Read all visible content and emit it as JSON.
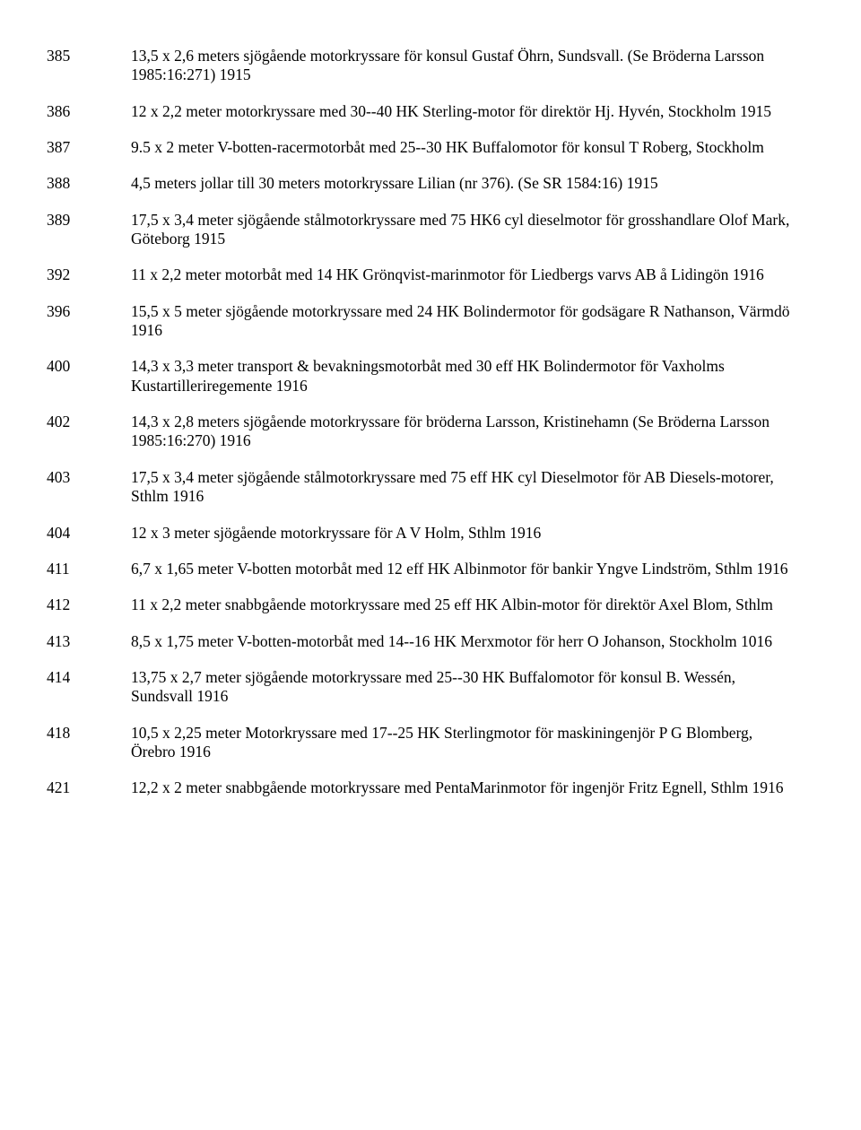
{
  "entries": [
    {
      "num": "385",
      "desc": "13,5 x 2,6 meters sjögående motorkryssare för konsul Gustaf Öhrn, Sundsvall. (Se Bröderna Larsson 1985:16:271) 1915"
    },
    {
      "num": "386",
      "desc": "12 x 2,2 meter motorkryssare med 30--40 HK Sterling-motor för direktör Hj. Hyvén, Stockholm 1915"
    },
    {
      "num": "387",
      "desc": "9.5 x 2 meter V-botten-racermotorbåt med 25--30 HK Buffalomotor för konsul T Roberg, Stockholm"
    },
    {
      "num": "388",
      "desc": "4,5 meters jollar till 30 meters motorkryssare Lilian (nr 376). (Se SR 1584:16) 1915"
    },
    {
      "num": "389",
      "desc": "17,5 x 3,4 meter sjögående stålmotorkryssare med 75 HK6 cyl dieselmotor för grosshandlare Olof Mark, Göteborg 1915"
    },
    {
      "num": "392",
      "desc": "11 x 2,2 meter motorbåt med 14 HK Grönqvist-marinmotor för Liedbergs varvs AB å Lidingön 1916"
    },
    {
      "num": "396",
      "desc": "15,5 x 5 meter sjögående motorkryssare med 24 HK Bolindermotor för godsägare R Nathanson, Värmdö 1916"
    },
    {
      "num": "400",
      "desc": "14,3 x 3,3 meter transport & bevakningsmotorbåt med 30 eff HK Bolindermotor för Vaxholms Kustartilleriregemente 1916"
    },
    {
      "num": "402",
      "desc": "14,3 x 2,8 meters sjögående motorkryssare för bröderna Larsson, Kristinehamn (Se Bröderna Larsson 1985:16:270) 1916"
    },
    {
      "num": "403",
      "desc": "17,5 x 3,4 meter sjögående stålmotorkryssare med 75 eff HK cyl Dieselmotor för AB Diesels-motorer, Sthlm 1916"
    },
    {
      "num": "404",
      "desc": "12 x 3 meter sjögående motorkryssare för A V Holm, Sthlm 1916"
    },
    {
      "num": "411",
      "desc": "6,7 x 1,65 meter V-botten motorbåt med 12 eff HK Albinmotor för bankir Yngve Lindström, Sthlm 1916"
    },
    {
      "num": "412",
      "desc": "11 x 2,2 meter snabbgående motorkryssare med 25 eff HK Albin-motor för direktör Axel Blom, Sthlm"
    },
    {
      "num": "413",
      "desc": "8,5 x 1,75 meter V-botten-motorbåt med 14--16 HK Merxmotor för herr O Johanson, Stockholm 1016"
    },
    {
      "num": "414",
      "desc": "13,75 x 2,7 meter sjögående motorkryssare med 25--30 HK Buffalomotor för konsul B. Wessén, Sundsvall 1916"
    },
    {
      "num": "418",
      "desc": "10,5 x 2,25 meter Motorkryssare med 17--25 HK Sterlingmotor för maskiningenjör P G Blomberg, Örebro 1916"
    },
    {
      "num": "421",
      "desc": "12,2 x 2 meter snabbgående motorkryssare med PentaMarinmotor för ingenjör Fritz Egnell, Sthlm 1916"
    }
  ]
}
